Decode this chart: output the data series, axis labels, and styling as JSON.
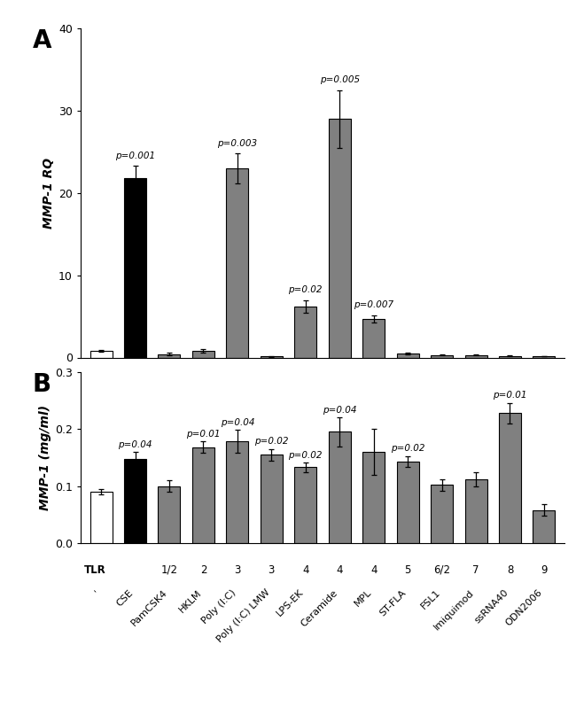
{
  "panel_A": {
    "ylabel": "MMP-1 RQ",
    "ylim": [
      0,
      40
    ],
    "yticks": [
      0,
      10,
      20,
      30,
      40
    ],
    "bars": [
      {
        "label": "'",
        "tlr": "",
        "value": 0.8,
        "err": 0.1,
        "color": "white",
        "pval": null
      },
      {
        "label": "CSE",
        "tlr": "",
        "value": 21.8,
        "err": 1.5,
        "color": "black",
        "pval": "p=0.001"
      },
      {
        "label": "PamCSK4",
        "tlr": "1/2",
        "value": 0.4,
        "err": 0.15,
        "color": "#808080",
        "pval": null
      },
      {
        "label": "HKLM",
        "tlr": "2",
        "value": 0.8,
        "err": 0.2,
        "color": "#808080",
        "pval": null
      },
      {
        "label": "Poly (I:C)",
        "tlr": "3",
        "value": 23.0,
        "err": 1.8,
        "color": "#808080",
        "pval": "p=0.003"
      },
      {
        "label": "Poly (I:C) LMW",
        "tlr": "3",
        "value": 0.15,
        "err": 0.05,
        "color": "#808080",
        "pval": null
      },
      {
        "label": "LPS-EK",
        "tlr": "4",
        "value": 6.2,
        "err": 0.8,
        "color": "#808080",
        "pval": "p=0.02"
      },
      {
        "label": "Ceramide",
        "tlr": "4",
        "value": 29.0,
        "err": 3.5,
        "color": "#808080",
        "pval": "p=0.005"
      },
      {
        "label": "MPL",
        "tlr": "4",
        "value": 4.7,
        "err": 0.4,
        "color": "#808080",
        "pval": "p=0.007"
      },
      {
        "label": "ST-FLA",
        "tlr": "5",
        "value": 0.5,
        "err": 0.1,
        "color": "#808080",
        "pval": null
      },
      {
        "label": "FSL1",
        "tlr": "6/2",
        "value": 0.3,
        "err": 0.05,
        "color": "#808080",
        "pval": null
      },
      {
        "label": "Imiquimod",
        "tlr": "7",
        "value": 0.3,
        "err": 0.05,
        "color": "#808080",
        "pval": null
      },
      {
        "label": "ssRNA40",
        "tlr": "8",
        "value": 0.2,
        "err": 0.04,
        "color": "#808080",
        "pval": null
      },
      {
        "label": "ODN2006",
        "tlr": "9",
        "value": 0.15,
        "err": 0.03,
        "color": "#808080",
        "pval": null
      }
    ]
  },
  "panel_B": {
    "ylabel": "MMP-1 (mg/ml)",
    "ylim": [
      0.0,
      0.3
    ],
    "yticks": [
      0.0,
      0.1,
      0.2,
      0.3
    ],
    "bars": [
      {
        "label": "'",
        "tlr": "",
        "value": 0.09,
        "err": 0.005,
        "color": "white",
        "pval": null
      },
      {
        "label": "CSE",
        "tlr": "",
        "value": 0.148,
        "err": 0.012,
        "color": "black",
        "pval": "p=0.04"
      },
      {
        "label": "PamCSK4",
        "tlr": "1/2",
        "value": 0.1,
        "err": 0.01,
        "color": "#808080",
        "pval": null
      },
      {
        "label": "HKLM",
        "tlr": "2",
        "value": 0.168,
        "err": 0.01,
        "color": "#808080",
        "pval": "p=0.01"
      },
      {
        "label": "Poly (I:C)",
        "tlr": "3",
        "value": 0.178,
        "err": 0.02,
        "color": "#808080",
        "pval": "p=0.04"
      },
      {
        "label": "Poly (I:C) LMW",
        "tlr": "3",
        "value": 0.155,
        "err": 0.01,
        "color": "#808080",
        "pval": "p=0.02"
      },
      {
        "label": "LPS-EK",
        "tlr": "4",
        "value": 0.133,
        "err": 0.008,
        "color": "#808080",
        "pval": "p=0.02"
      },
      {
        "label": "Ceramide",
        "tlr": "4",
        "value": 0.195,
        "err": 0.025,
        "color": "#808080",
        "pval": "p=0.04"
      },
      {
        "label": "MPL",
        "tlr": "4",
        "value": 0.16,
        "err": 0.04,
        "color": "#808080",
        "pval": null
      },
      {
        "label": "ST-FLA",
        "tlr": "5",
        "value": 0.143,
        "err": 0.01,
        "color": "#808080",
        "pval": "p=0.02"
      },
      {
        "label": "FSL1",
        "tlr": "6/2",
        "value": 0.102,
        "err": 0.01,
        "color": "#808080",
        "pval": null
      },
      {
        "label": "Imiquimod",
        "tlr": "7",
        "value": 0.112,
        "err": 0.012,
        "color": "#808080",
        "pval": null
      },
      {
        "label": "ssRNA40",
        "tlr": "8",
        "value": 0.228,
        "err": 0.018,
        "color": "#808080",
        "pval": "p=0.01"
      },
      {
        "label": "ODN2006",
        "tlr": "9",
        "value": 0.058,
        "err": 0.01,
        "color": "#808080",
        "pval": null
      }
    ]
  },
  "panel_A_label": "A",
  "panel_B_label": "B",
  "bar_width": 0.65,
  "edgecolor": "black",
  "figsize": [
    6.5,
    8.07
  ],
  "dpi": 100
}
